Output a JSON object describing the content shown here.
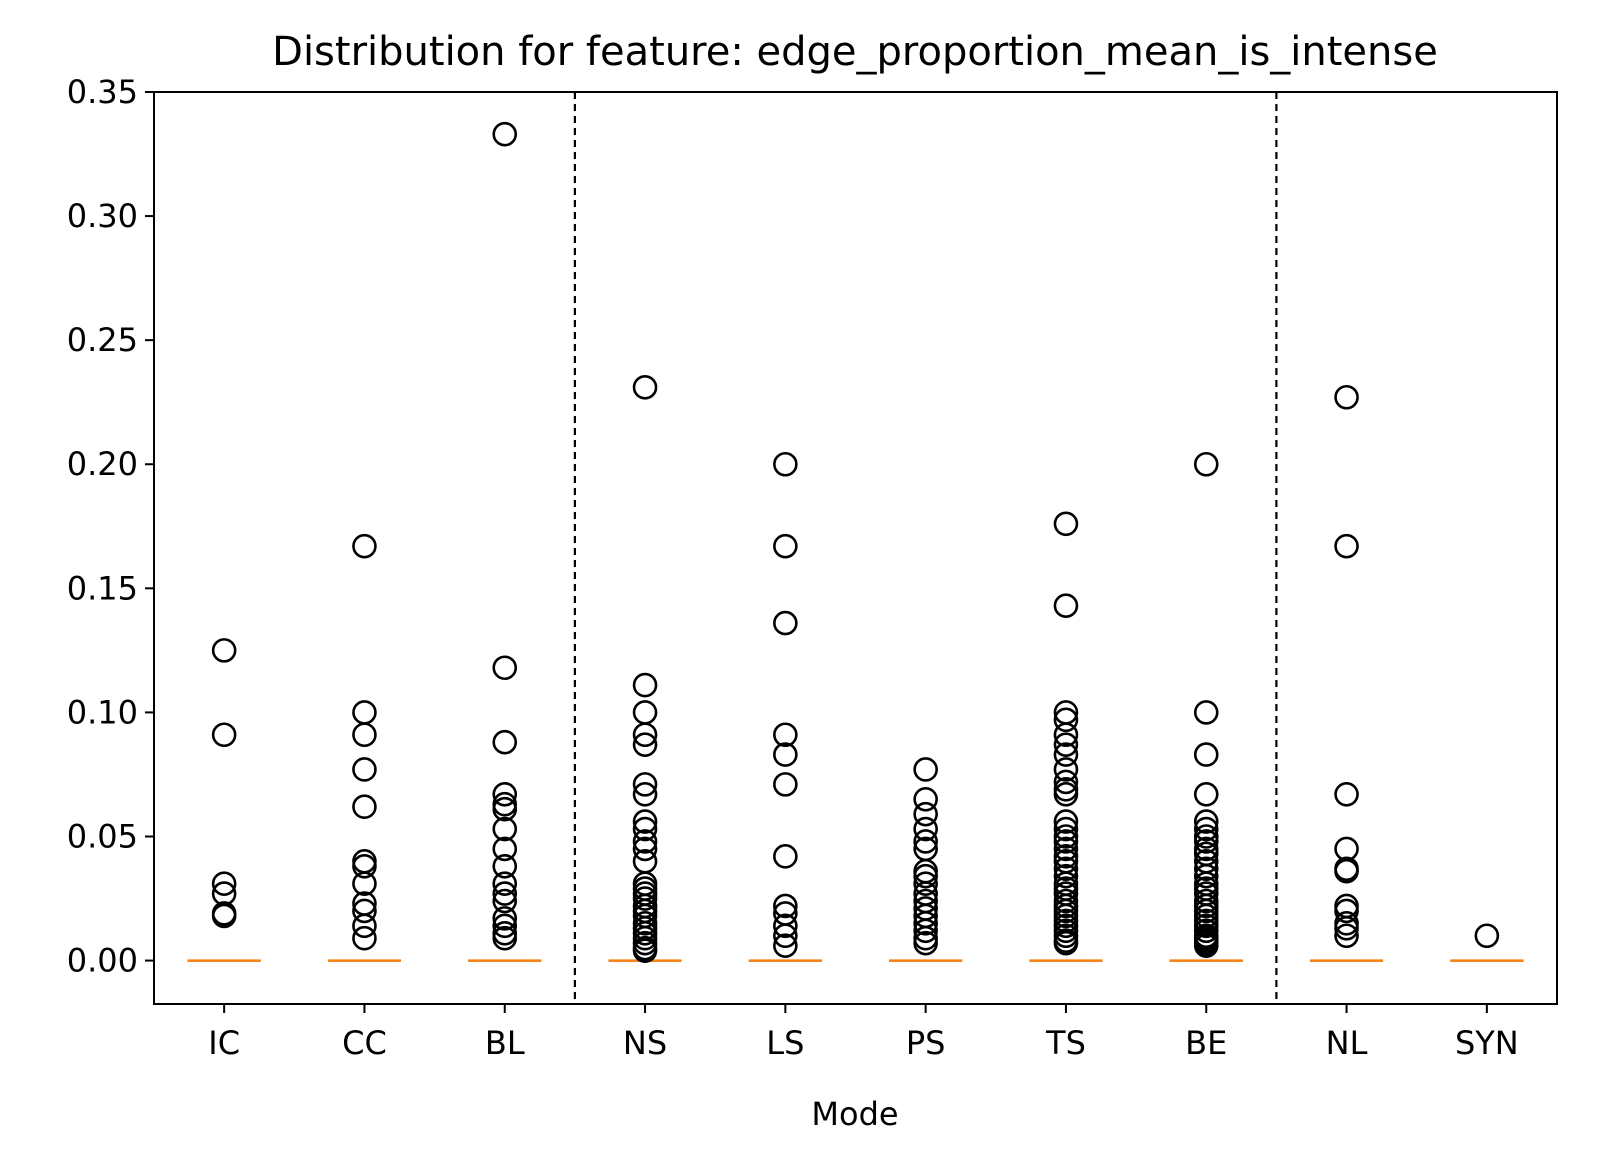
{
  "chart_data": {
    "type": "box",
    "title": "Distribution for feature: edge_proportion_mean_is_intense",
    "xlabel": "Mode",
    "ylabel": "",
    "ylim": [
      -0.0175,
      0.35
    ],
    "yticks": [
      "0.00",
      "0.05",
      "0.10",
      "0.15",
      "0.20",
      "0.25",
      "0.30",
      "0.35"
    ],
    "ytick_values": [
      0,
      0.05,
      0.1,
      0.15,
      0.2,
      0.25,
      0.3,
      0.35
    ],
    "categories": [
      "IC",
      "CC",
      "BL",
      "NS",
      "LS",
      "PS",
      "TS",
      "BE",
      "NL",
      "SYN"
    ],
    "group_separators_after_index": [
      2,
      7
    ],
    "median_color": "#ff7f0e",
    "series": [
      {
        "category": "IC",
        "median": 0,
        "q1": 0,
        "q3": 0,
        "outliers": [
          0.125,
          0.091,
          0.031,
          0.027,
          0.019,
          0.018
        ]
      },
      {
        "category": "CC",
        "median": 0,
        "q1": 0,
        "q3": 0,
        "outliers": [
          0.167,
          0.1,
          0.091,
          0.077,
          0.062,
          0.04,
          0.038,
          0.031,
          0.023,
          0.02,
          0.014,
          0.009
        ]
      },
      {
        "category": "BL",
        "median": 0,
        "q1": 0,
        "q3": 0,
        "outliers": [
          0.333,
          0.118,
          0.088,
          0.067,
          0.063,
          0.061,
          0.053,
          0.045,
          0.038,
          0.031,
          0.027,
          0.024,
          0.017,
          0.014,
          0.011,
          0.009
        ]
      },
      {
        "category": "NS",
        "median": 0,
        "q1": 0,
        "q3": 0,
        "outliers": [
          0.231,
          0.111,
          0.1,
          0.091,
          0.087,
          0.071,
          0.067,
          0.056,
          0.053,
          0.048,
          0.045,
          0.04,
          0.031,
          0.029,
          0.027,
          0.025,
          0.022,
          0.02,
          0.018,
          0.015,
          0.013,
          0.011,
          0.009,
          0.007,
          0.005,
          0.004
        ]
      },
      {
        "category": "LS",
        "median": 0,
        "q1": 0,
        "q3": 0,
        "outliers": [
          0.2,
          0.167,
          0.136,
          0.091,
          0.083,
          0.071,
          0.042,
          0.022,
          0.019,
          0.014,
          0.01,
          0.006
        ]
      },
      {
        "category": "PS",
        "median": 0,
        "q1": 0,
        "q3": 0,
        "outliers": [
          0.077,
          0.065,
          0.059,
          0.053,
          0.048,
          0.045,
          0.036,
          0.034,
          0.031,
          0.027,
          0.024,
          0.021,
          0.018,
          0.015,
          0.012,
          0.009,
          0.007
        ]
      },
      {
        "category": "TS",
        "median": 0,
        "q1": 0,
        "q3": 0,
        "outliers": [
          0.176,
          0.143,
          0.1,
          0.097,
          0.091,
          0.087,
          0.083,
          0.077,
          0.072,
          0.069,
          0.067,
          0.056,
          0.053,
          0.05,
          0.048,
          0.045,
          0.042,
          0.04,
          0.037,
          0.034,
          0.031,
          0.029,
          0.027,
          0.024,
          0.022,
          0.02,
          0.018,
          0.016,
          0.014,
          0.012,
          0.01,
          0.008,
          0.007
        ]
      },
      {
        "category": "BE",
        "median": 0,
        "q1": 0,
        "q3": 0,
        "outliers": [
          0.2,
          0.1,
          0.083,
          0.067,
          0.056,
          0.053,
          0.05,
          0.048,
          0.045,
          0.043,
          0.04,
          0.037,
          0.034,
          0.031,
          0.029,
          0.027,
          0.024,
          0.022,
          0.02,
          0.018,
          0.016,
          0.014,
          0.012,
          0.01,
          0.009,
          0.008,
          0.007,
          0.006
        ]
      },
      {
        "category": "NL",
        "median": 0,
        "q1": 0,
        "q3": 0,
        "outliers": [
          0.227,
          0.167,
          0.067,
          0.045,
          0.037,
          0.036,
          0.022,
          0.02,
          0.015,
          0.013,
          0.01
        ]
      },
      {
        "category": "SYN",
        "median": 0,
        "q1": 0,
        "q3": 0,
        "outliers": [
          0.01
        ]
      }
    ]
  }
}
